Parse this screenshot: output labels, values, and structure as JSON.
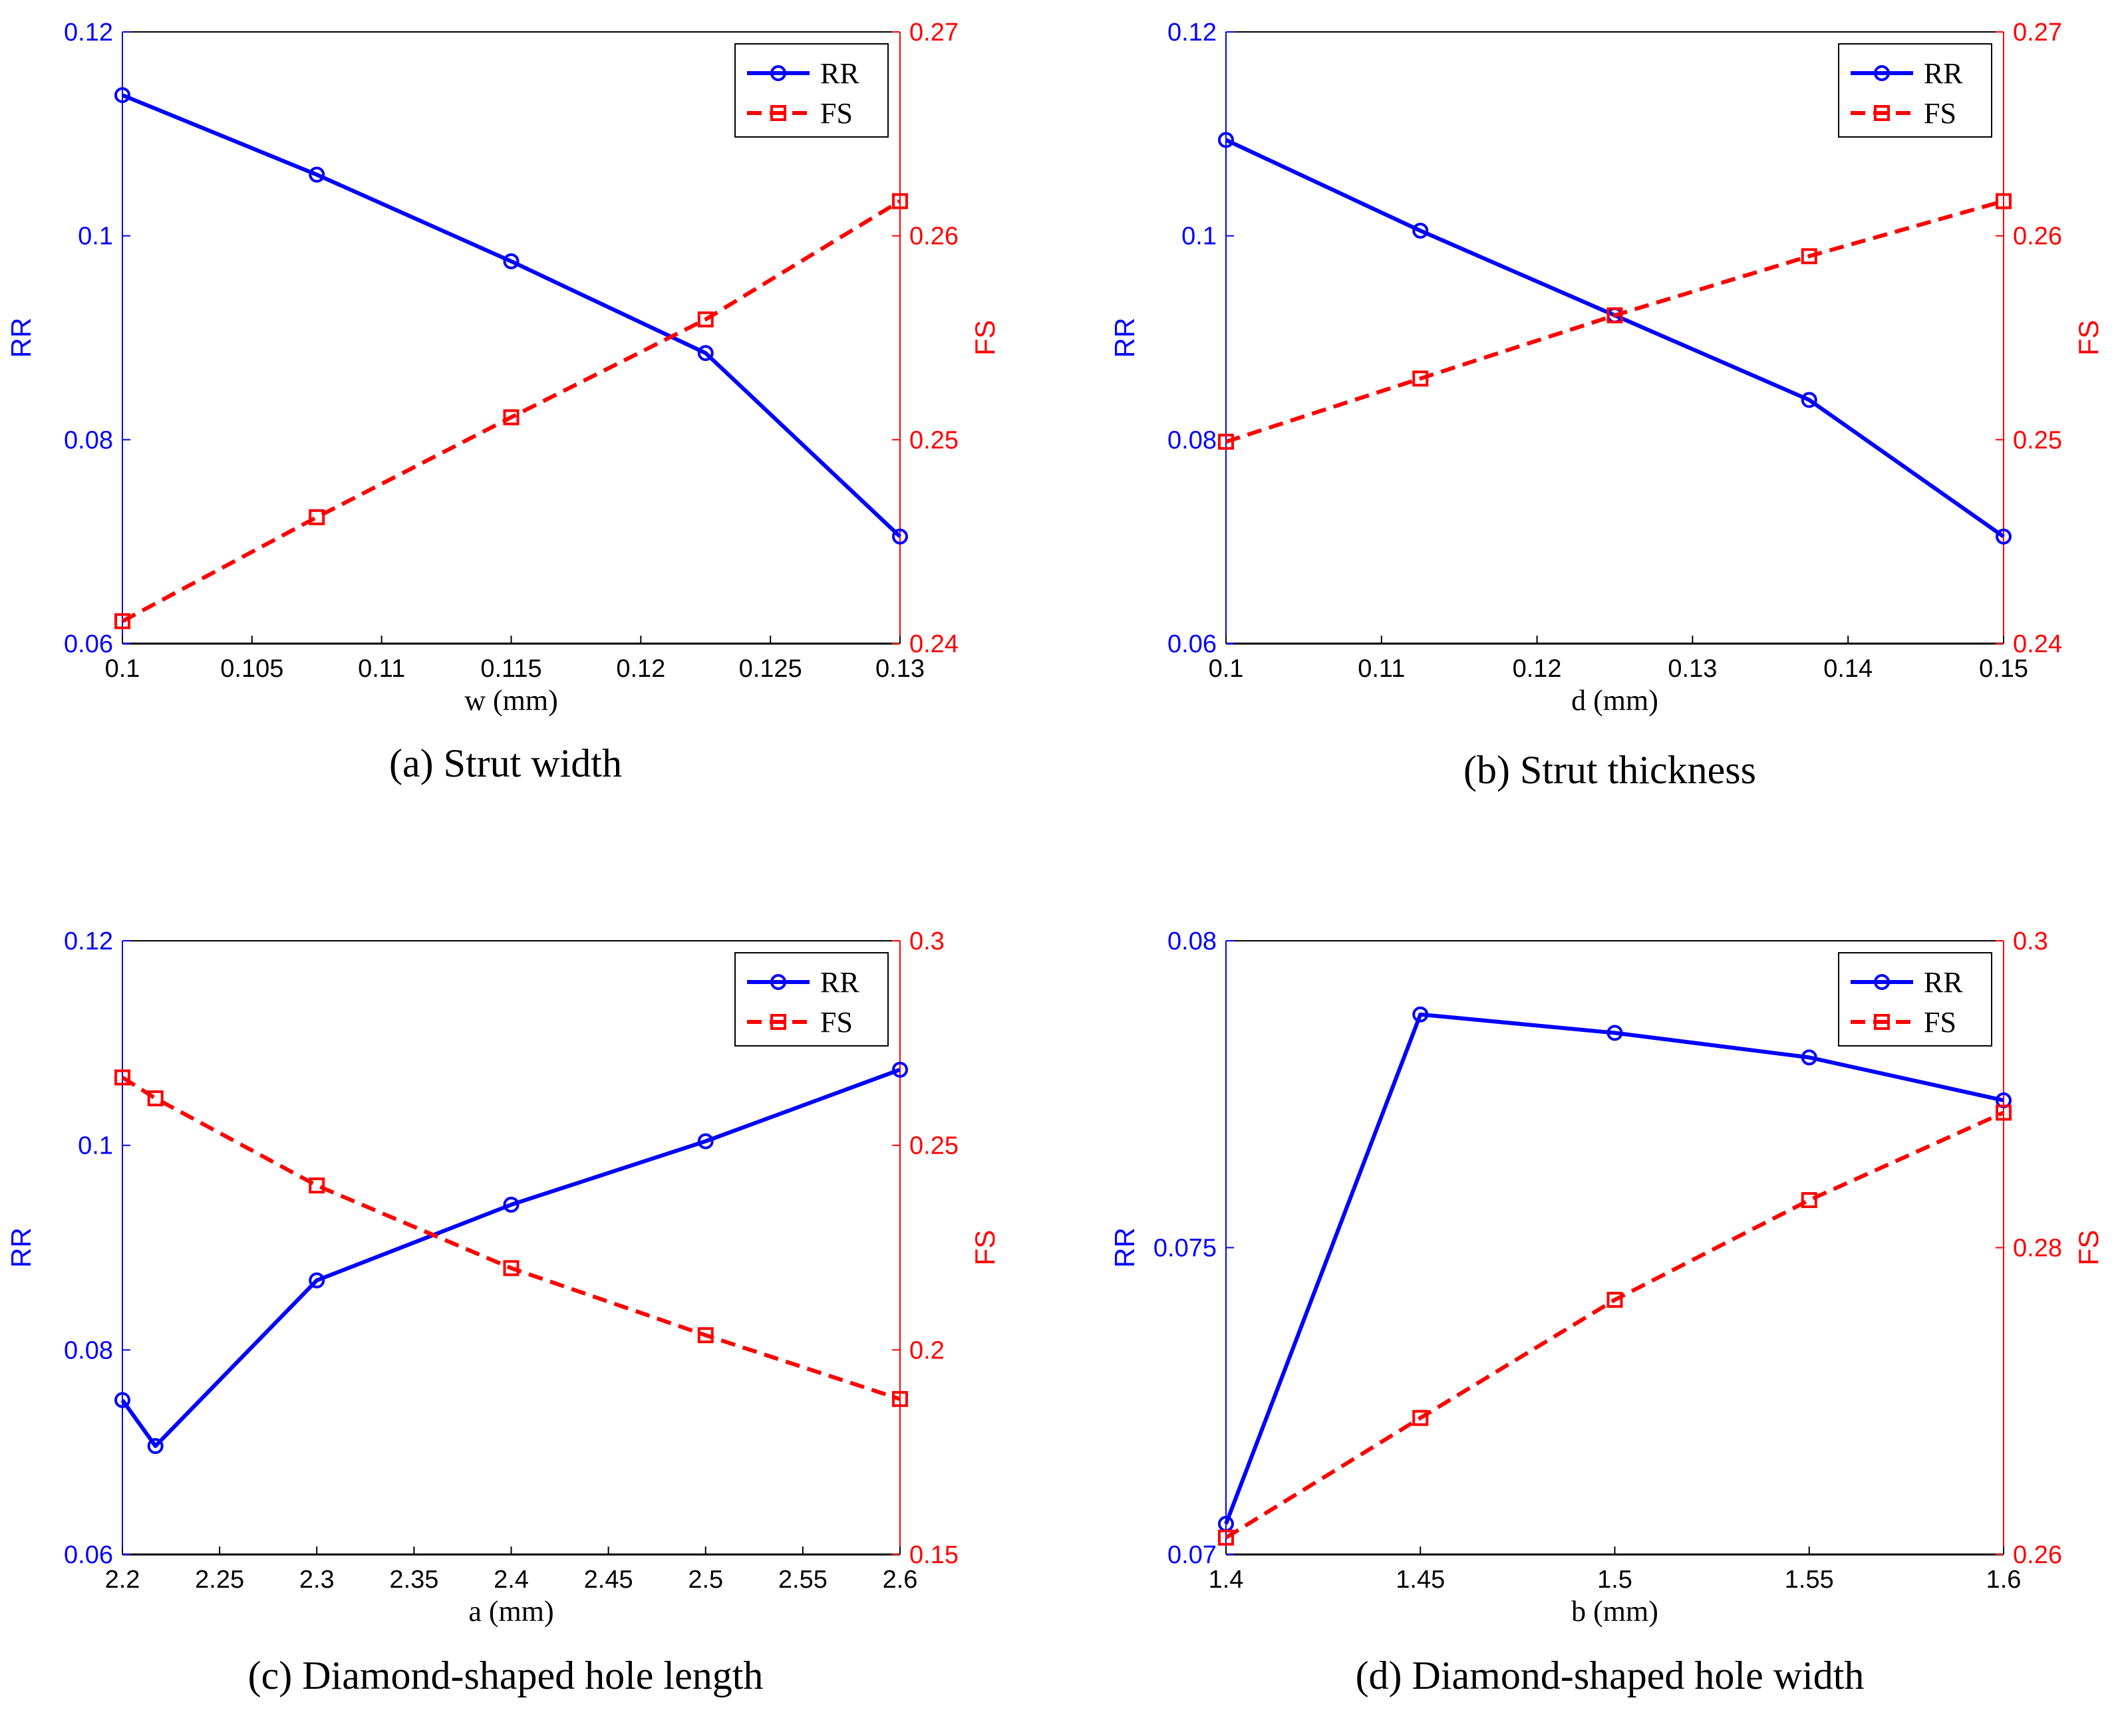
{
  "colors": {
    "rr": "#0000ff",
    "fs": "#ff0000",
    "axis": "#000000"
  },
  "chart_data": [
    {
      "type": "line",
      "caption": "(a) Strut width",
      "xlabel": "w (mm)",
      "ylabel": "RR",
      "y2label": "FS",
      "xlim": [
        0.1,
        0.13
      ],
      "xticks": [
        "0.1",
        "0.105",
        "0.11",
        "0.115",
        "0.12",
        "0.125",
        "0.13"
      ],
      "ylim": [
        0.06,
        0.12
      ],
      "yticks": [
        "0.06",
        "0.08",
        "0.1",
        "0.12"
      ],
      "y2lim": [
        0.24,
        0.27
      ],
      "y2ticks": [
        "0.24",
        "0.25",
        "0.26",
        "0.27"
      ],
      "legend": [
        "RR",
        "FS"
      ],
      "series": [
        {
          "name": "RR",
          "axis": "left",
          "x": [
            0.1,
            0.1075,
            0.115,
            0.1225,
            0.13
          ],
          "values": [
            0.1138,
            0.106,
            0.0975,
            0.0885,
            0.0705
          ]
        },
        {
          "name": "FS",
          "axis": "right",
          "x": [
            0.1,
            0.1075,
            0.115,
            0.1225,
            0.13
          ],
          "values": [
            0.2411,
            0.2462,
            0.2511,
            0.2559,
            0.2617
          ]
        }
      ]
    },
    {
      "type": "line",
      "caption": "(b) Strut thickness",
      "xlabel": "d (mm)",
      "ylabel": "RR",
      "y2label": "FS",
      "xlim": [
        0.1,
        0.15
      ],
      "xticks": [
        "0.1",
        "0.11",
        "0.12",
        "0.13",
        "0.14",
        "0.15"
      ],
      "ylim": [
        0.06,
        0.12
      ],
      "yticks": [
        "0.06",
        "0.08",
        "0.1",
        "0.12"
      ],
      "y2lim": [
        0.24,
        0.27
      ],
      "y2ticks": [
        "0.24",
        "0.25",
        "0.26",
        "0.27"
      ],
      "legend": [
        "RR",
        "FS"
      ],
      "series": [
        {
          "name": "RR",
          "axis": "left",
          "x": [
            0.1,
            0.1125,
            0.125,
            0.1375,
            0.15
          ],
          "values": [
            0.1094,
            0.1005,
            0.0922,
            0.0839,
            0.0705
          ]
        },
        {
          "name": "FS",
          "axis": "right",
          "x": [
            0.1,
            0.1125,
            0.125,
            0.1375,
            0.15
          ],
          "values": [
            0.2499,
            0.253,
            0.2561,
            0.259,
            0.2617
          ]
        }
      ]
    },
    {
      "type": "line",
      "caption": "(c) Diamond-shaped hole length",
      "xlabel": "a (mm)",
      "ylabel": "RR",
      "y2label": "FS",
      "xlim": [
        2.2,
        2.6
      ],
      "xticks": [
        "2.2",
        "2.25",
        "2.3",
        "2.35",
        "2.4",
        "2.45",
        "2.5",
        "2.55",
        "2.6"
      ],
      "ylim": [
        0.06,
        0.12
      ],
      "yticks": [
        "0.06",
        "0.08",
        "0.1",
        "0.12"
      ],
      "y2lim": [
        0.15,
        0.3
      ],
      "y2ticks": [
        "0.15",
        "0.2",
        "0.25",
        "0.3"
      ],
      "legend": [
        "RR",
        "FS"
      ],
      "series": [
        {
          "name": "RR",
          "axis": "left",
          "x": [
            2.2,
            2.217,
            2.3,
            2.4,
            2.5,
            2.6
          ],
          "values": [
            0.0751,
            0.0706,
            0.0868,
            0.0942,
            0.1004,
            0.1074
          ]
        },
        {
          "name": "FS",
          "axis": "right",
          "x": [
            2.2,
            2.217,
            2.3,
            2.4,
            2.5,
            2.6
          ],
          "values": [
            0.2666,
            0.2615,
            0.2402,
            0.22,
            0.2036,
            0.188
          ]
        }
      ]
    },
    {
      "type": "line",
      "caption": "(d) Diamond-shaped hole width",
      "xlabel": "b (mm)",
      "ylabel": "RR",
      "y2label": "FS",
      "xlim": [
        1.4,
        1.6
      ],
      "xticks": [
        "1.4",
        "1.45",
        "1.5",
        "1.55",
        "1.6"
      ],
      "ylim": [
        0.07,
        0.08
      ],
      "yticks": [
        "0.07",
        "0.075",
        "0.08"
      ],
      "y2lim": [
        0.26,
        0.3
      ],
      "y2ticks": [
        "0.26",
        "0.28",
        "0.3"
      ],
      "legend": [
        "RR",
        "FS"
      ],
      "series": [
        {
          "name": "RR",
          "axis": "left",
          "x": [
            1.4,
            1.45,
            1.5,
            1.55,
            1.6
          ],
          "values": [
            0.0705,
            0.0788,
            0.0785,
            0.0781,
            0.0774
          ]
        },
        {
          "name": "FS",
          "axis": "right",
          "x": [
            1.4,
            1.45,
            1.5,
            1.55,
            1.6
          ],
          "values": [
            0.2611,
            0.2689,
            0.2766,
            0.2831,
            0.2888
          ]
        }
      ]
    }
  ]
}
